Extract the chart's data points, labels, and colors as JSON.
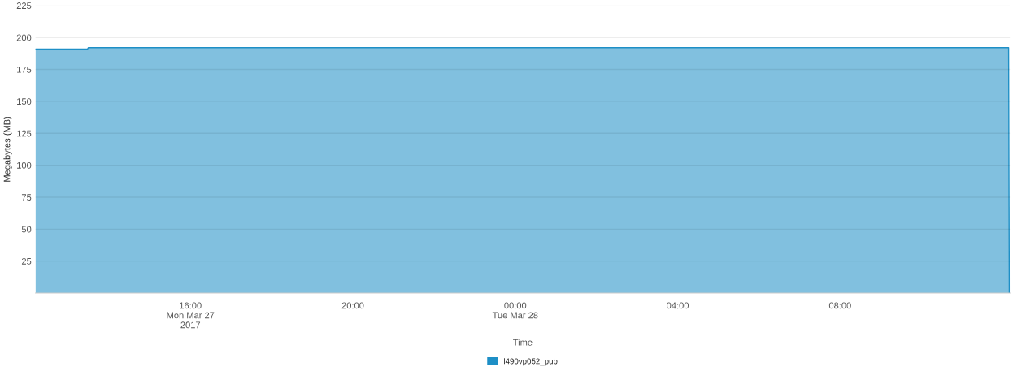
{
  "chart_data": {
    "type": "area",
    "xlabel": "Time",
    "ylabel": "Megabytes (MB)",
    "x": [
      "2017-03-27T12:11",
      "2017-03-27T13:28",
      "2017-03-27T13:29",
      "2017-03-28T12:09",
      "2017-03-28T12:10"
    ],
    "series": [
      {
        "name": "l490vp052_pub",
        "color": "#1e8fc6",
        "values": [
          191,
          191,
          192,
          192,
          0
        ]
      }
    ],
    "xlim": [
      "2017-03-27T12:11",
      "2017-03-28T12:11"
    ],
    "xticks": [
      {
        "value": "2017-03-27T16:00",
        "label": "16:00\nMon Mar 27\n2017"
      },
      {
        "value": "2017-03-27T20:00",
        "label": "20:00"
      },
      {
        "value": "2017-03-28T00:00",
        "label": "00:00\nTue Mar 28"
      },
      {
        "value": "2017-03-28T04:00",
        "label": "04:00"
      },
      {
        "value": "2017-03-28T08:00",
        "label": "08:00"
      }
    ],
    "ylim": [
      0,
      225
    ],
    "yticks": [
      25,
      50,
      75,
      100,
      125,
      150,
      175,
      200,
      225
    ],
    "grid": "y",
    "legend": "bottom"
  }
}
